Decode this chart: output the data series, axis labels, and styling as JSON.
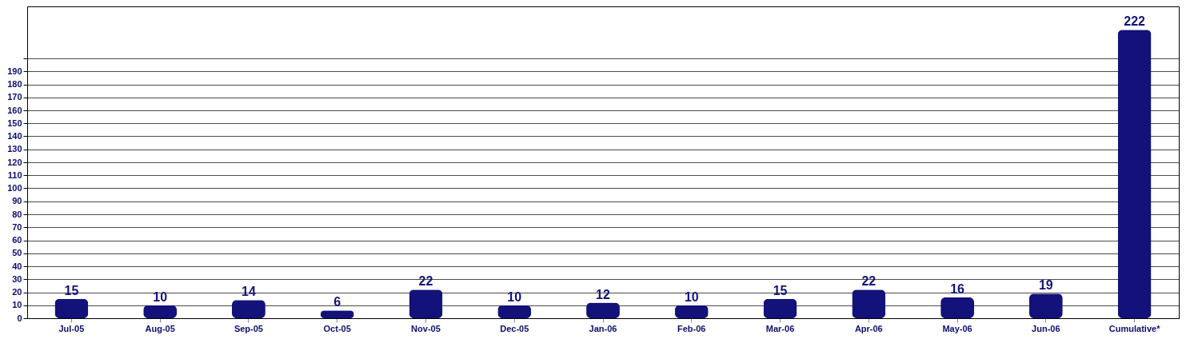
{
  "chart_data": {
    "type": "bar",
    "categories": [
      "Jul-05",
      "Aug-05",
      "Sep-05",
      "Oct-05",
      "Nov-05",
      "Dec-05",
      "Jan-06",
      "Feb-06",
      "Mar-06",
      "Apr-06",
      "May-06",
      "Jun-06",
      "Cumulative*"
    ],
    "values": [
      15,
      10,
      14,
      6,
      22,
      10,
      12,
      10,
      15,
      22,
      16,
      19,
      222
    ],
    "color": "#12127a",
    "ylim": [
      0,
      240
    ],
    "yticks": [
      0,
      10,
      20,
      30,
      40,
      50,
      60,
      70,
      80,
      90,
      100,
      110,
      120,
      130,
      140,
      150,
      160,
      170,
      180,
      190,
      {
        "value": 200,
        "label": null
      }
    ],
    "grid": "y",
    "data_labels": true
  }
}
